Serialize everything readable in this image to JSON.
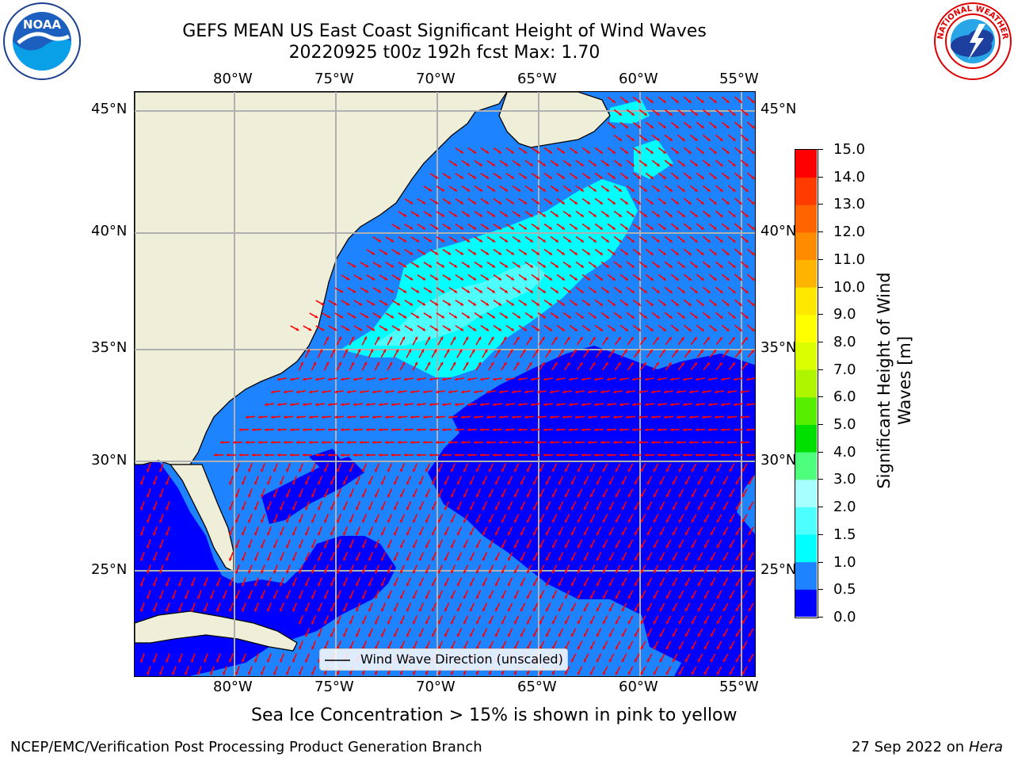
{
  "title": {
    "line1": "GEFS MEAN US East Coast Significant Height of Wind Waves",
    "line2": "20220925 t00z 192h fcst   Max: 1.70"
  },
  "axes": {
    "lon_ticks": [
      "80°W",
      "75°W",
      "70°W",
      "65°W",
      "60°W",
      "55°W"
    ],
    "lat_ticks": [
      "45°N",
      "40°N",
      "35°N",
      "30°N",
      "25°N"
    ]
  },
  "colorbar": {
    "title_line1": "Significant Height of Wind",
    "title_line2": "Waves [m]",
    "labels": [
      "15.0",
      "14.0",
      "13.0",
      "12.0",
      "11.0",
      "10.0",
      "9.0",
      "8.0",
      "7.0",
      "6.0",
      "5.0",
      "4.0",
      "3.0",
      "2.0",
      "1.5",
      "1.0",
      "0.5",
      "0.0"
    ],
    "colors": [
      "#0000ff",
      "#1e83ff",
      "#00ffff",
      "#4dffff",
      "#a8ffff",
      "#4dff7c",
      "#00e000",
      "#58ee00",
      "#b0f500",
      "#daff00",
      "#ffff00",
      "#ffe800",
      "#ffb400",
      "#ff8c00",
      "#ff6400",
      "#ff3c00",
      "#ff0000"
    ]
  },
  "legend": {
    "label": "Wind Wave Direction (unscaled)"
  },
  "notes": {
    "sea_ice": "Sea Ice Concentration > 15% is shown in pink to yellow",
    "credit": "NCEP/EMC/Verification Post Processing Product Generation Branch",
    "run_date": "27 Sep 2022 on",
    "machine": "Hera"
  },
  "logos": {
    "left": "NOAA",
    "right": "NATIONAL WEATHER SERVICE"
  },
  "map_colors": {
    "land": "#efeed9",
    "ocean_low": "#0000ff",
    "ocean_mid": "#1e83ff",
    "ocean_high": "#00ffff",
    "ocean_top": "#4dffff",
    "arrow": "#ff0000",
    "grid": "#b0b0b0"
  }
}
